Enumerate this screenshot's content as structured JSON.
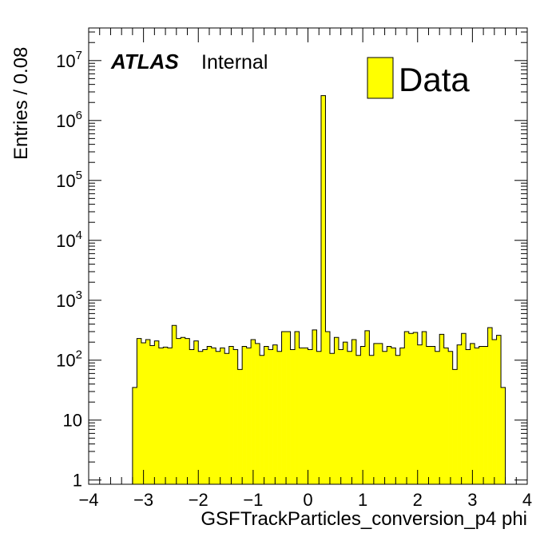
{
  "chart_data": {
    "type": "bar",
    "histogram": true,
    "title": "",
    "xlabel": "GSFTrackParticles_conversion_p4 phi",
    "ylabel": "Entries / 0.08",
    "xlim": [
      -4,
      4
    ],
    "ylim": [
      0.85,
      35000000
    ],
    "log_y": true,
    "grid": false,
    "legend_position": "top-right",
    "bin_width": 0.08,
    "x_start": -3.2,
    "series": [
      {
        "name": "Data",
        "color": "#ffff00",
        "edge_color": "#000000",
        "values": [
          35,
          230,
          195,
          220,
          175,
          210,
          160,
          165,
          160,
          380,
          230,
          240,
          230,
          150,
          210,
          140,
          150,
          170,
          160,
          140,
          160,
          130,
          170,
          150,
          70,
          170,
          160,
          220,
          190,
          120,
          170,
          150,
          180,
          140,
          300,
          300,
          150,
          300,
          160,
          160,
          150,
          320,
          140,
          2600000,
          300,
          130,
          240,
          150,
          200,
          140,
          220,
          120,
          170,
          310,
          120,
          190,
          190,
          140,
          170,
          160,
          120,
          160,
          300,
          280,
          290,
          180,
          300,
          170,
          170,
          140,
          270,
          160,
          140,
          70,
          180,
          280,
          150,
          190,
          160,
          170,
          170,
          350,
          220,
          260,
          35
        ]
      }
    ]
  },
  "axes": {
    "x_ticks": [
      "−4",
      "−3",
      "−2",
      "−1",
      "0",
      "1",
      "2",
      "3",
      "4"
    ],
    "y_ticks": [
      {
        "base": "1",
        "exp": ""
      },
      {
        "base": "10",
        "exp": ""
      },
      {
        "base": "10",
        "exp": "2"
      },
      {
        "base": "10",
        "exp": "3"
      },
      {
        "base": "10",
        "exp": "4"
      },
      {
        "base": "10",
        "exp": "5"
      },
      {
        "base": "10",
        "exp": "6"
      },
      {
        "base": "10",
        "exp": "7"
      }
    ]
  },
  "labels": {
    "atlas": "ATLAS",
    "internal": "Internal",
    "legend_entry": "Data"
  },
  "colors": {
    "fill": "#ffff00",
    "line": "#000000",
    "background": "#ffffff"
  }
}
